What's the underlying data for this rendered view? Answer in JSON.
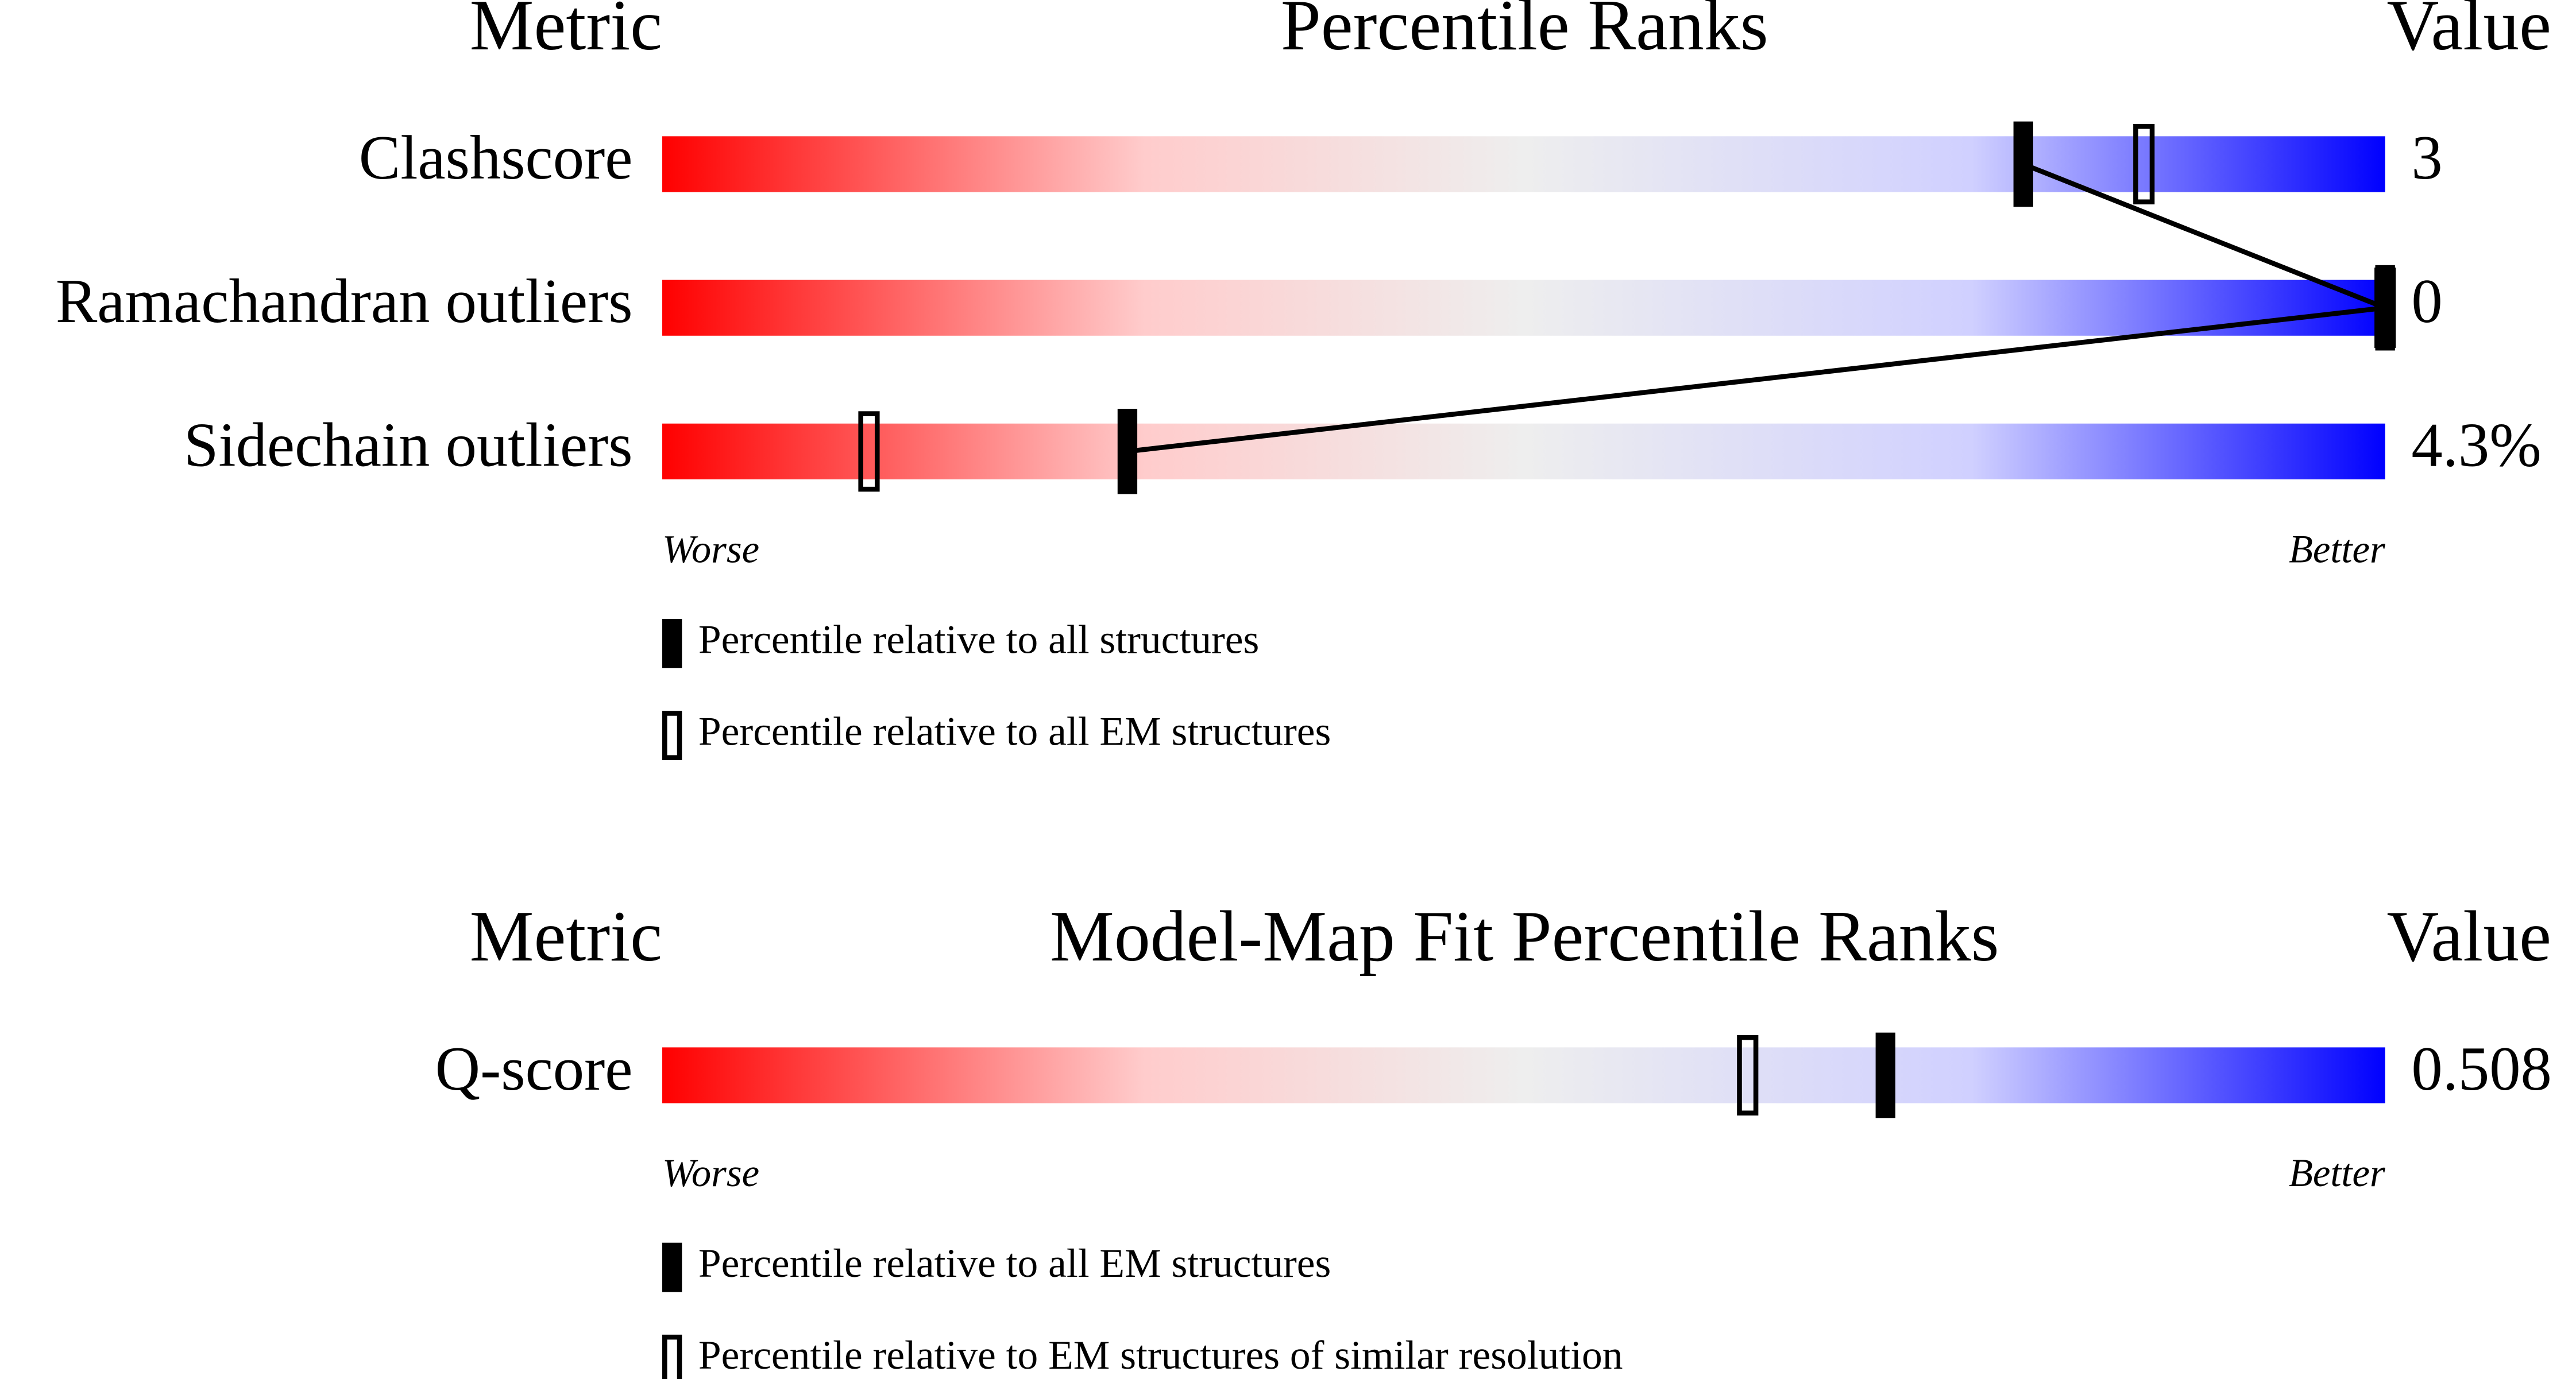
{
  "chart_data": [
    {
      "type": "percentile",
      "title": "Percentile Ranks",
      "metric_header": "Metric",
      "value_header": "Value",
      "categories": [
        "Clashscore",
        "Ramachandran outliers",
        "Sidechain outliers"
      ],
      "value_texts": [
        "3",
        "0",
        "4.3%"
      ],
      "xlim": [
        0,
        100
      ],
      "series": [
        {
          "name": "Percentile relative to all structures",
          "style": "filled",
          "color": "#000000",
          "values": [
            79,
            100,
            27
          ]
        },
        {
          "name": "Percentile relative to all EM structures",
          "style": "open",
          "color": "#000000",
          "values": [
            86,
            100,
            12
          ]
        }
      ],
      "worse_label": "Worse",
      "better_label": "Better"
    },
    {
      "type": "percentile",
      "title": "Model-Map Fit Percentile Ranks",
      "metric_header": "Metric",
      "value_header": "Value",
      "categories": [
        "Q-score"
      ],
      "value_texts": [
        "0.508"
      ],
      "xlim": [
        0,
        100
      ],
      "series": [
        {
          "name": "Percentile relative to all EM structures",
          "style": "filled",
          "color": "#000000",
          "values": [
            71
          ]
        },
        {
          "name": "Percentile relative to EM structures of similar resolution",
          "style": "open",
          "color": "#000000",
          "values": [
            63
          ]
        }
      ],
      "worse_label": "Worse",
      "better_label": "Better"
    }
  ]
}
